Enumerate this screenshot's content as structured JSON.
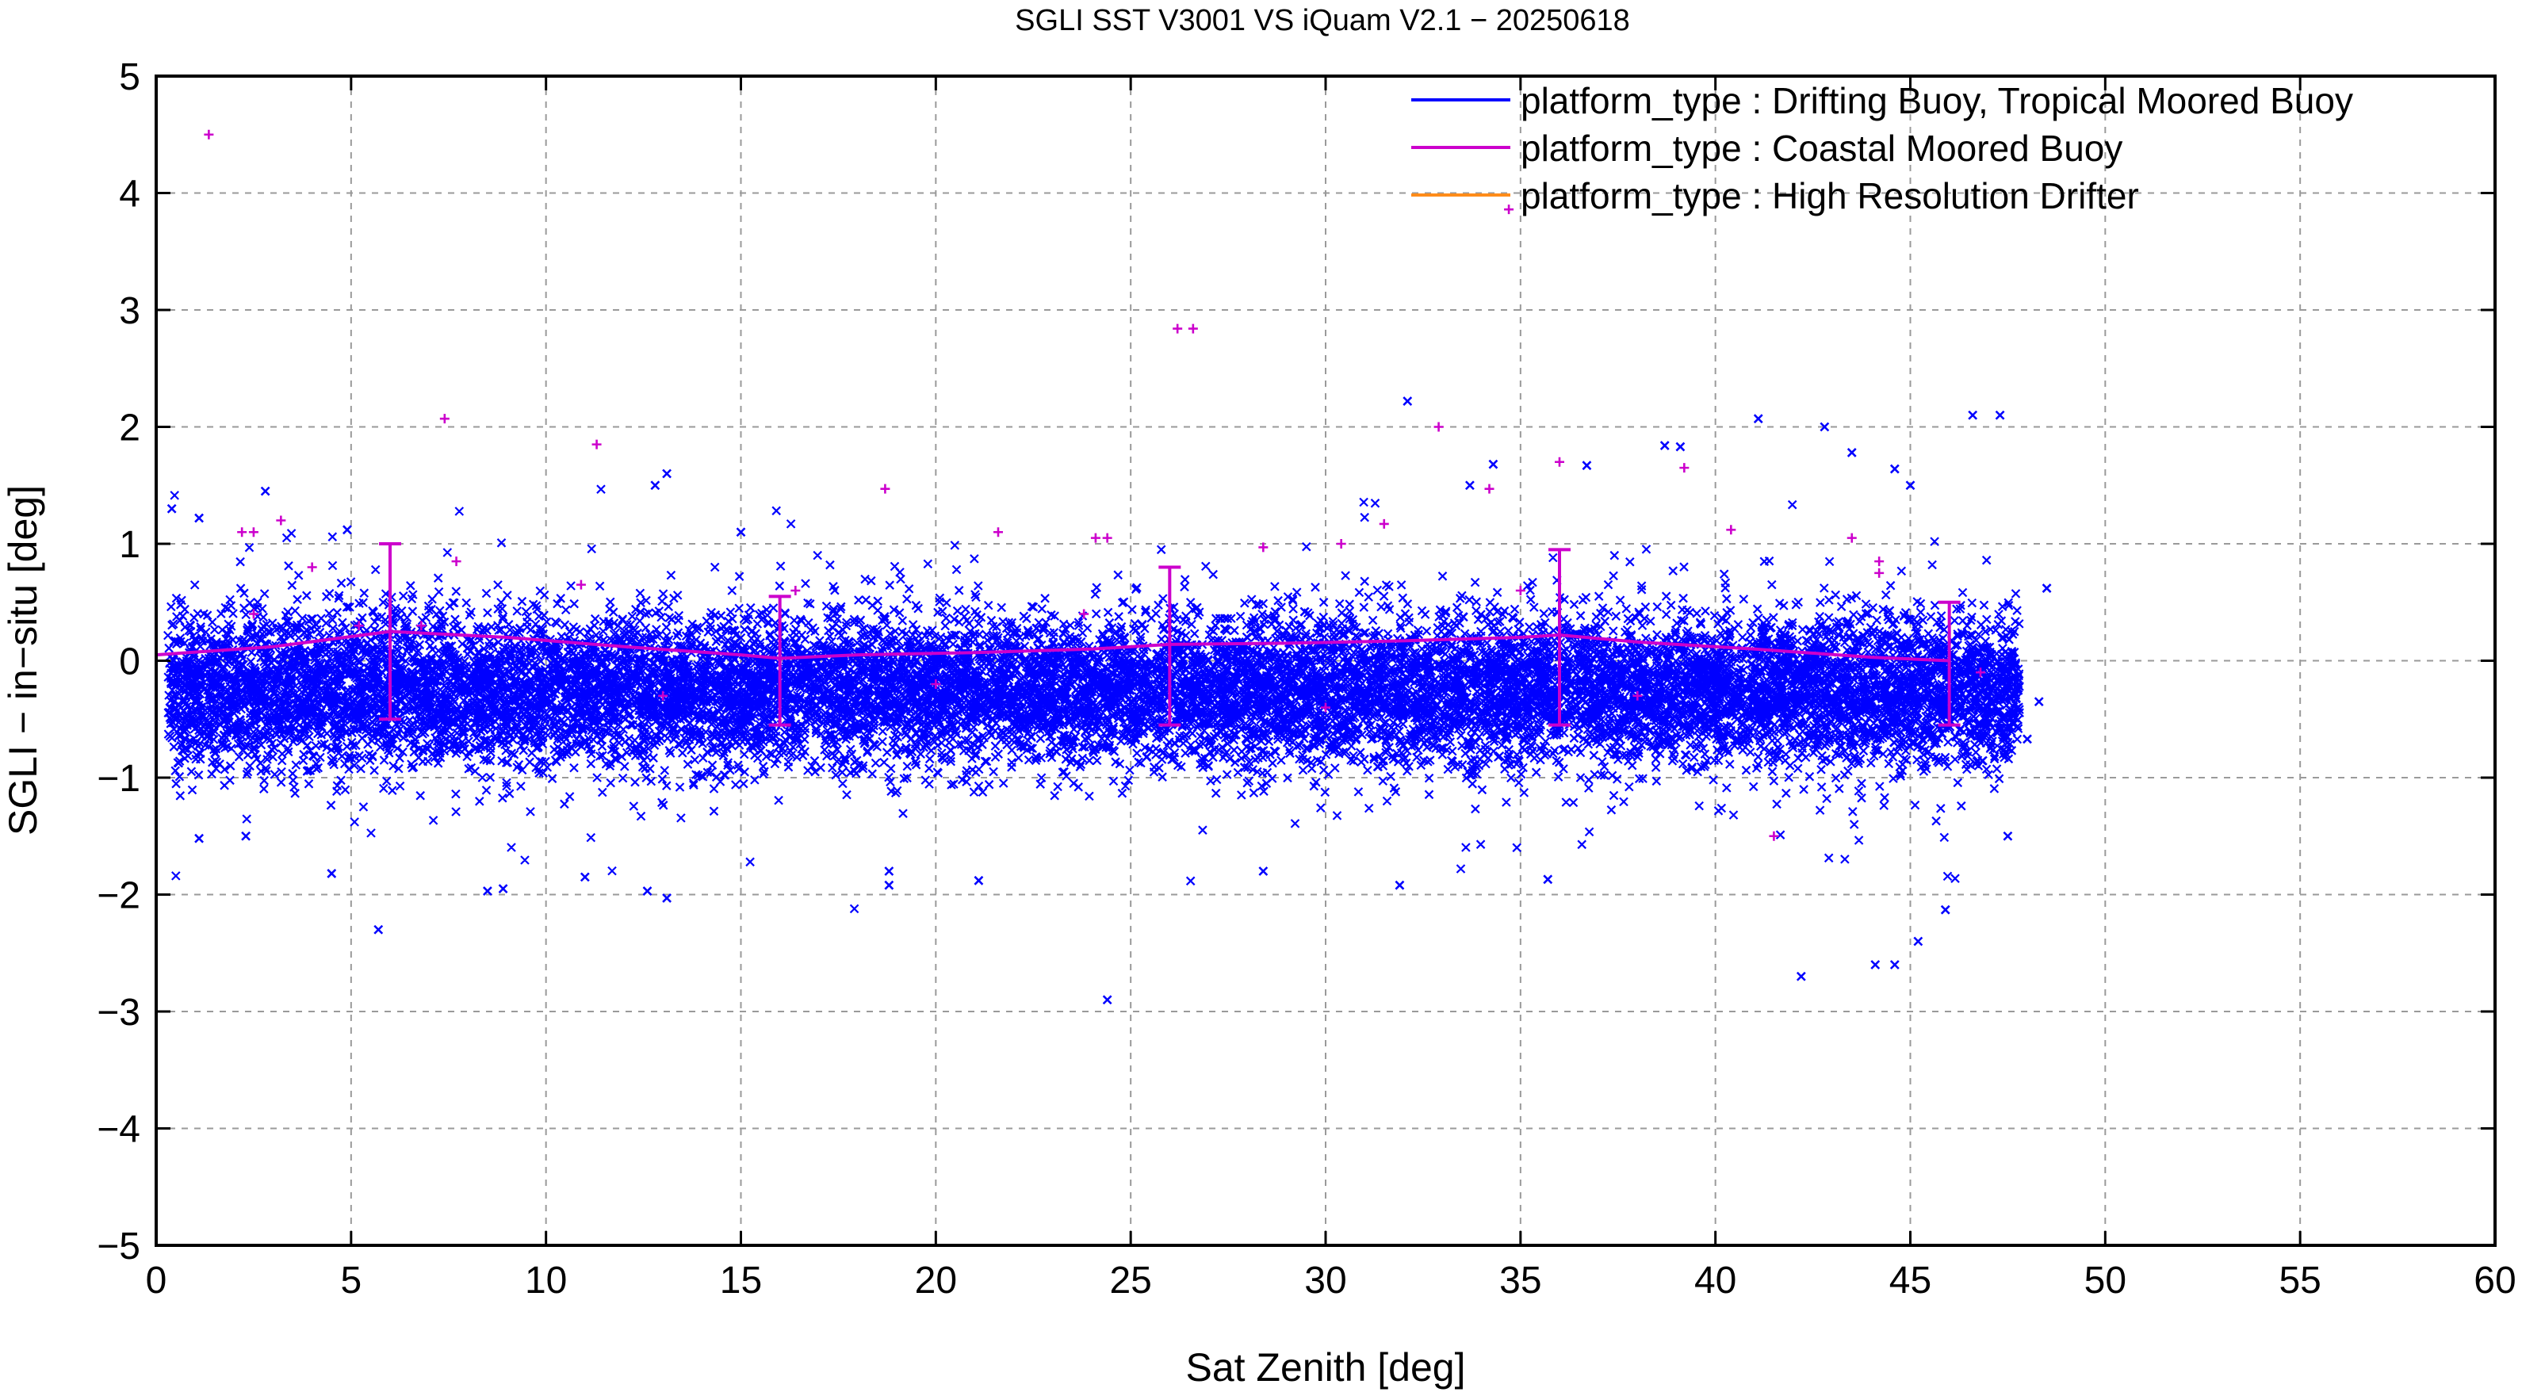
{
  "chart_data": {
    "type": "scatter",
    "title": "SGLI SST V3001 VS iQuam V2.1  − 20250618",
    "xlabel": "Sat Zenith [deg]",
    "ylabel": "SGLI − in−situ [deg]",
    "xlim": [
      0,
      60
    ],
    "ylim": [
      -5,
      5
    ],
    "x_ticks": [
      0,
      5,
      10,
      15,
      20,
      25,
      30,
      35,
      40,
      45,
      50,
      55,
      60
    ],
    "y_ticks": [
      -5,
      -4,
      -3,
      -2,
      -1,
      0,
      1,
      2,
      3,
      4,
      5
    ],
    "x_tick_labels": [
      "0",
      "5",
      "10",
      "15",
      "20",
      "25",
      "30",
      "35",
      "40",
      "45",
      "50",
      "55",
      "60"
    ],
    "y_tick_labels": [
      "−5",
      "−4",
      "−3",
      "−2",
      "−1",
      "0",
      "1",
      "2",
      "3",
      "4",
      "5"
    ],
    "grid": true,
    "legend_position": "top-right",
    "legend": [
      {
        "label": "platform_type : Drifting Buoy, Tropical Moored Buoy",
        "color": "#0000ff"
      },
      {
        "label": "platform_type : Coastal Moored Buoy",
        "color": "#cc00cc"
      },
      {
        "label": "platform_type : High Resolution Drifter",
        "color": "#ff8c1a"
      }
    ],
    "scatter_cloud": {
      "series": "platform_type : Drifting Buoy, Tropical Moored Buoy",
      "x_range": [
        0.3,
        47.8
      ],
      "center_y": -0.25,
      "spread_y": 0.32,
      "marker": "x",
      "approx_point_count": 14000
    },
    "series": [
      {
        "name": "platform_type : Drifting Buoy, Tropical Moored Buoy",
        "color": "#0000ff",
        "marker": "x",
        "outliers": [
          {
            "x": 0.4,
            "y": 1.3
          },
          {
            "x": 1.1,
            "y": 1.22
          },
          {
            "x": 2.8,
            "y": 1.45
          },
          {
            "x": 4.9,
            "y": 1.12
          },
          {
            "x": 4.5,
            "y": -1.82
          },
          {
            "x": 5.7,
            "y": -2.3
          },
          {
            "x": 1.1,
            "y": -1.52
          },
          {
            "x": 2.3,
            "y": -1.5
          },
          {
            "x": 8.5,
            "y": -1.97
          },
          {
            "x": 8.9,
            "y": -1.95
          },
          {
            "x": 11.0,
            "y": -1.85
          },
          {
            "x": 12.6,
            "y": -1.97
          },
          {
            "x": 13.1,
            "y": -2.03
          },
          {
            "x": 12.8,
            "y": 1.5
          },
          {
            "x": 13.1,
            "y": 1.6
          },
          {
            "x": 15.0,
            "y": 1.1
          },
          {
            "x": 18.8,
            "y": -1.8
          },
          {
            "x": 18.8,
            "y": -1.92
          },
          {
            "x": 21.1,
            "y": -1.88
          },
          {
            "x": 24.4,
            "y": -2.9
          },
          {
            "x": 28.4,
            "y": -1.8
          },
          {
            "x": 31.9,
            "y": -1.92
          },
          {
            "x": 32.1,
            "y": 2.22
          },
          {
            "x": 33.7,
            "y": 1.5
          },
          {
            "x": 35.7,
            "y": -1.87
          },
          {
            "x": 34.3,
            "y": 1.68
          },
          {
            "x": 36.7,
            "y": 1.67
          },
          {
            "x": 38.7,
            "y": 1.84
          },
          {
            "x": 39.1,
            "y": 1.83
          },
          {
            "x": 41.1,
            "y": 2.07
          },
          {
            "x": 42.2,
            "y": -2.7
          },
          {
            "x": 42.8,
            "y": 2.0
          },
          {
            "x": 43.5,
            "y": 1.78
          },
          {
            "x": 44.1,
            "y": -2.6
          },
          {
            "x": 44.6,
            "y": -2.6
          },
          {
            "x": 44.6,
            "y": 1.64
          },
          {
            "x": 45.0,
            "y": 1.5
          },
          {
            "x": 45.2,
            "y": -2.4
          },
          {
            "x": 45.9,
            "y": -2.13
          },
          {
            "x": 46.6,
            "y": 2.1
          },
          {
            "x": 47.3,
            "y": 2.1
          },
          {
            "x": 48.0,
            "y": -0.67
          },
          {
            "x": 48.3,
            "y": -0.35
          },
          {
            "x": 48.5,
            "y": 0.62
          },
          {
            "x": 47.5,
            "y": -1.5
          }
        ]
      },
      {
        "name": "platform_type : Coastal Moored Buoy",
        "color": "#cc00cc",
        "marker": "+",
        "points": [
          {
            "x": 1.35,
            "y": 4.5
          },
          {
            "x": 7.4,
            "y": 2.07
          },
          {
            "x": 11.3,
            "y": 1.85
          },
          {
            "x": 18.7,
            "y": 1.47
          },
          {
            "x": 26.2,
            "y": 2.84
          },
          {
            "x": 26.6,
            "y": 2.84
          },
          {
            "x": 32.9,
            "y": 2.0
          },
          {
            "x": 34.7,
            "y": 3.86
          },
          {
            "x": 36.0,
            "y": 1.7
          },
          {
            "x": 39.2,
            "y": 1.65
          },
          {
            "x": 2.2,
            "y": 1.1
          },
          {
            "x": 2.5,
            "y": 1.1
          },
          {
            "x": 3.2,
            "y": 1.2
          },
          {
            "x": 4.0,
            "y": 0.8
          },
          {
            "x": 7.7,
            "y": 0.85
          },
          {
            "x": 10.9,
            "y": 0.65
          },
          {
            "x": 21.6,
            "y": 1.1
          },
          {
            "x": 24.1,
            "y": 1.05
          },
          {
            "x": 24.4,
            "y": 1.05
          },
          {
            "x": 28.4,
            "y": 0.97
          },
          {
            "x": 30.4,
            "y": 1.0
          },
          {
            "x": 31.5,
            "y": 1.17
          },
          {
            "x": 34.2,
            "y": 1.47
          },
          {
            "x": 40.4,
            "y": 1.12
          },
          {
            "x": 43.5,
            "y": 1.05
          },
          {
            "x": 44.2,
            "y": 0.85
          },
          {
            "x": 44.2,
            "y": 0.75
          },
          {
            "x": 41.5,
            "y": -1.5
          },
          {
            "x": 2.5,
            "y": 0.4
          },
          {
            "x": 6.8,
            "y": 0.3
          },
          {
            "x": 16.4,
            "y": 0.6
          },
          {
            "x": 23.8,
            "y": 0.4
          },
          {
            "x": 35.0,
            "y": 0.6
          },
          {
            "x": 46.8,
            "y": -0.1
          },
          {
            "x": 13.0,
            "y": -0.3
          },
          {
            "x": 20.0,
            "y": -0.2
          },
          {
            "x": 30.0,
            "y": -0.4
          },
          {
            "x": 38.0,
            "y": -0.3
          },
          {
            "x": 5.2,
            "y": 0.3
          }
        ]
      },
      {
        "name": "platform_type : High Resolution Drifter",
        "color": "#ff8c1a",
        "marker": "line",
        "points": []
      }
    ],
    "mean_curve": {
      "series": "platform_type : Coastal Moored Buoy",
      "color": "#cc00cc",
      "x": [
        0,
        3,
        6,
        9,
        12,
        15,
        16,
        18,
        21,
        24,
        26,
        29,
        32,
        35,
        36,
        38,
        41,
        44,
        46
      ],
      "y": [
        0.05,
        0.12,
        0.25,
        0.2,
        0.12,
        0.05,
        0.02,
        0.05,
        0.07,
        0.1,
        0.14,
        0.15,
        0.17,
        0.2,
        0.22,
        0.16,
        0.1,
        0.03,
        0.0
      ]
    },
    "error_bars": [
      {
        "x": 6,
        "low": -0.5,
        "high": 1.0
      },
      {
        "x": 16,
        "low": -0.55,
        "high": 0.55
      },
      {
        "x": 26,
        "low": -0.55,
        "high": 0.8
      },
      {
        "x": 36,
        "low": -0.55,
        "high": 0.95
      },
      {
        "x": 46,
        "low": -0.55,
        "high": 0.5
      }
    ]
  }
}
